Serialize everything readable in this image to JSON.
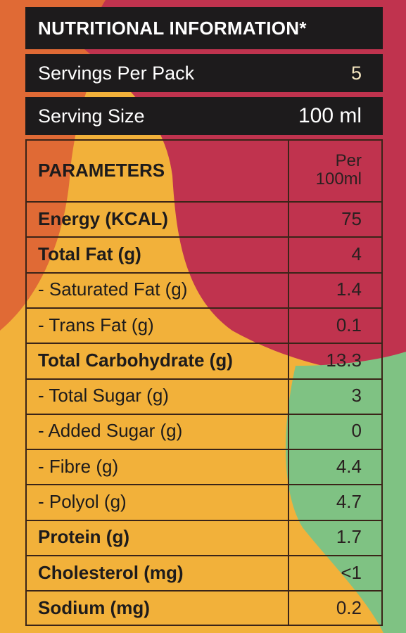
{
  "colors": {
    "background_yellow": "#f2b13a",
    "background_red": "#c0334e",
    "background_orange": "#e06a35",
    "background_green": "#7fc283",
    "header_black": "#1d1b1c"
  },
  "title": "NUTRITIONAL INFORMATION*",
  "servings": {
    "label": "Servings Per Pack",
    "value": "5"
  },
  "serving_size": {
    "label": "Serving Size",
    "value": "100 ml"
  },
  "table": {
    "header": {
      "param": "PARAMETERS",
      "per_line1": "Per",
      "per_line2": "100ml"
    },
    "rows": [
      {
        "name": "Energy (KCAL)",
        "value": "75",
        "bold": true
      },
      {
        "name": "Total Fat (g)",
        "value": "4",
        "bold": true
      },
      {
        "name": "- Saturated Fat (g)",
        "value": "1.4",
        "bold": false
      },
      {
        "name": "- Trans Fat (g)",
        "value": "0.1",
        "bold": false
      },
      {
        "name": "Total Carbohydrate (g)",
        "value": "13.3",
        "bold": true
      },
      {
        "name": "- Total Sugar (g)",
        "value": "3",
        "bold": false
      },
      {
        "name": "- Added Sugar (g)",
        "value": "0",
        "bold": false
      },
      {
        "name": "- Fibre (g)",
        "value": "4.4",
        "bold": false
      },
      {
        "name": "- Polyol (g)",
        "value": "4.7",
        "bold": false
      },
      {
        "name": "Protein (g)",
        "value": "1.7",
        "bold": true
      },
      {
        "name": "Cholesterol (mg)",
        "value": "<1",
        "bold": true
      },
      {
        "name": "Sodium (mg)",
        "value": "0.2",
        "bold": true
      }
    ]
  }
}
